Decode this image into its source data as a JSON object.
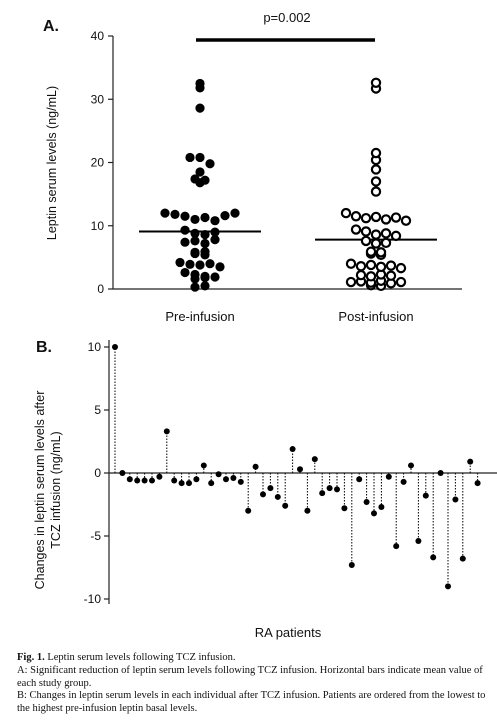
{
  "chart_data": [
    {
      "type": "scatter",
      "panel_label": "A.",
      "ylabel": "Leptin serum levels (ng/mL)",
      "ylim": [
        0,
        40
      ],
      "yticks": [
        0,
        10,
        20,
        30,
        40
      ],
      "categories": [
        "Pre-infusion",
        "Post-infusion"
      ],
      "annotation": "p=0.002",
      "means": [
        9.1,
        7.8
      ],
      "series": [
        {
          "marker": "filled",
          "values": [
            32.5,
            31.8,
            28.6,
            20.8,
            20.8,
            19.8,
            18.5,
            17.4,
            16.8,
            17.2,
            12.0,
            11.8,
            11.5,
            11.0,
            11.3,
            10.8,
            11.6,
            12.0,
            9.3,
            8.8,
            8.6,
            9.0,
            7.4,
            7.6,
            7.2,
            7.8,
            5.8,
            5.6,
            5.4,
            5.9,
            4.2,
            3.9,
            3.8,
            4.0,
            3.5,
            2.6,
            2.3,
            2.0,
            1.9,
            1.6,
            1.8,
            0.3,
            0.5
          ]
        },
        {
          "marker": "open",
          "values": [
            32.6,
            31.7,
            21.5,
            20.4,
            18.9,
            17.0,
            15.4,
            12.0,
            11.5,
            11.2,
            11.4,
            11.0,
            11.3,
            10.8,
            9.4,
            9.1,
            8.6,
            8.8,
            8.4,
            7.6,
            7.2,
            7.3,
            5.9,
            5.6,
            5.4,
            5.8,
            4.0,
            3.6,
            3.8,
            3.5,
            3.7,
            3.3,
            2.2,
            2.0,
            2.3,
            2.1,
            1.1,
            1.2,
            1.0,
            1.3,
            0.9,
            1.1,
            0.6,
            0.5
          ]
        }
      ]
    },
    {
      "type": "bar",
      "style": "lollipop",
      "panel_label": "B.",
      "ylabel": "Changes in leptin serum levels after TCZ infusion (ng/mL)",
      "xlabel": "RA patients",
      "ylim": [
        -10.5,
        10.5
      ],
      "yticks": [
        -10,
        -5,
        0,
        5,
        10
      ],
      "values": [
        10.0,
        0.0,
        -0.5,
        -0.6,
        -0.6,
        -0.6,
        -0.3,
        3.3,
        -0.6,
        -0.8,
        -0.8,
        -0.5,
        0.6,
        -0.8,
        -0.1,
        -0.5,
        -0.4,
        -0.7,
        -3.0,
        0.5,
        -1.7,
        -1.2,
        -1.9,
        -2.6,
        1.9,
        0.3,
        -3.0,
        1.1,
        -1.6,
        -1.2,
        -1.3,
        -2.8,
        -7.3,
        -0.5,
        -2.3,
        -3.2,
        -2.7,
        -0.3,
        -5.8,
        -0.7,
        0.6,
        -5.4,
        -1.8,
        -6.7,
        0.0,
        -9.0,
        -2.1,
        -6.8,
        0.9,
        -0.8
      ]
    }
  ],
  "caption": {
    "fig_label": "Fig. 1.",
    "fig_title": "Leptin serum levels following TCZ infusion.",
    "line_a": "A: Significant reduction of leptin serum levels following TCZ infusion. Horizontal bars indicate mean value of each study group.",
    "line_b": "B: Changes in leptin serum levels in each individual after TCZ infusion. Patients are ordered from the lowest to the highest pre-infusion leptin basal levels."
  }
}
